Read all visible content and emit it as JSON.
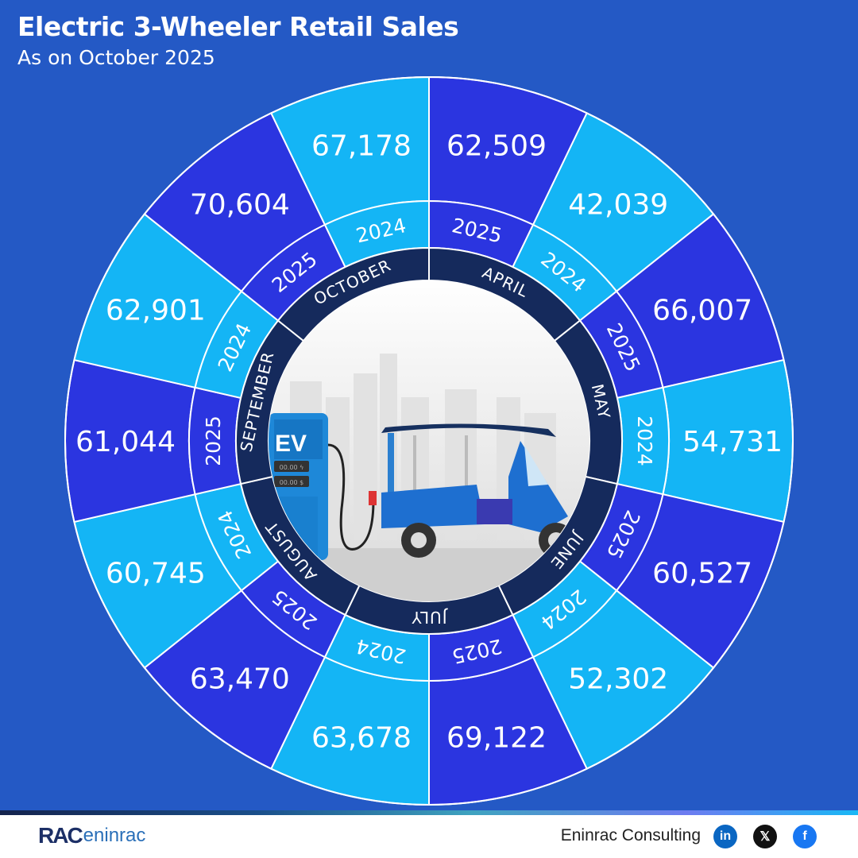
{
  "header": {
    "title": "Electric 3-Wheeler Retail Sales",
    "subtitle": "As on October 2025"
  },
  "colors": {
    "background": "#2459c5",
    "year_2025": "#2b35e0",
    "year_2024": "#14b5f5",
    "month_ring": "#152a5c",
    "divider": "#ffffff"
  },
  "chart_data": {
    "type": "radial-bar-table",
    "title": "Electric 3-Wheeler Retail Sales",
    "subtitle": "As on October 2025",
    "series_order": "clockwise from top",
    "months": [
      {
        "month": "APRIL",
        "values": [
          {
            "year": "2025",
            "value": "62,509"
          },
          {
            "year": "2024",
            "value": "42,039"
          }
        ]
      },
      {
        "month": "MAY",
        "values": [
          {
            "year": "2025",
            "value": "66,007"
          },
          {
            "year": "2024",
            "value": "54,731"
          }
        ]
      },
      {
        "month": "JUNE",
        "values": [
          {
            "year": "2025",
            "value": "60,527"
          },
          {
            "year": "2024",
            "value": "52,302"
          }
        ]
      },
      {
        "month": "JULY",
        "values": [
          {
            "year": "2025",
            "value": "69,122"
          },
          {
            "year": "2024",
            "value": "63,678"
          }
        ]
      },
      {
        "month": "AUGUST",
        "values": [
          {
            "year": "2025",
            "value": "63,470"
          },
          {
            "year": "2024",
            "value": "60,745"
          }
        ]
      },
      {
        "month": "SEPTEMBER",
        "values": [
          {
            "year": "2025",
            "value": "61,044"
          },
          {
            "year": "2024",
            "value": "62,901"
          }
        ]
      },
      {
        "month": "OCTOBER",
        "values": [
          {
            "year": "2025",
            "value": "70,604"
          },
          {
            "year": "2024",
            "value": "67,178"
          }
        ]
      }
    ]
  },
  "illustration": {
    "charger_label": "EV",
    "meter_1": "00.00 ϟ",
    "meter_2": "00.00 $"
  },
  "footer": {
    "logo_text_1": "RAC",
    "logo_text_2": "eninrac",
    "brand": "Eninrac Consulting",
    "social": [
      {
        "icon": "linkedin-icon",
        "glyph": "in",
        "color": "#0a66c2"
      },
      {
        "icon": "x-icon",
        "glyph": "𝕏",
        "color": "#111111"
      },
      {
        "icon": "facebook-icon",
        "glyph": "f",
        "color": "#1877f2"
      }
    ]
  }
}
